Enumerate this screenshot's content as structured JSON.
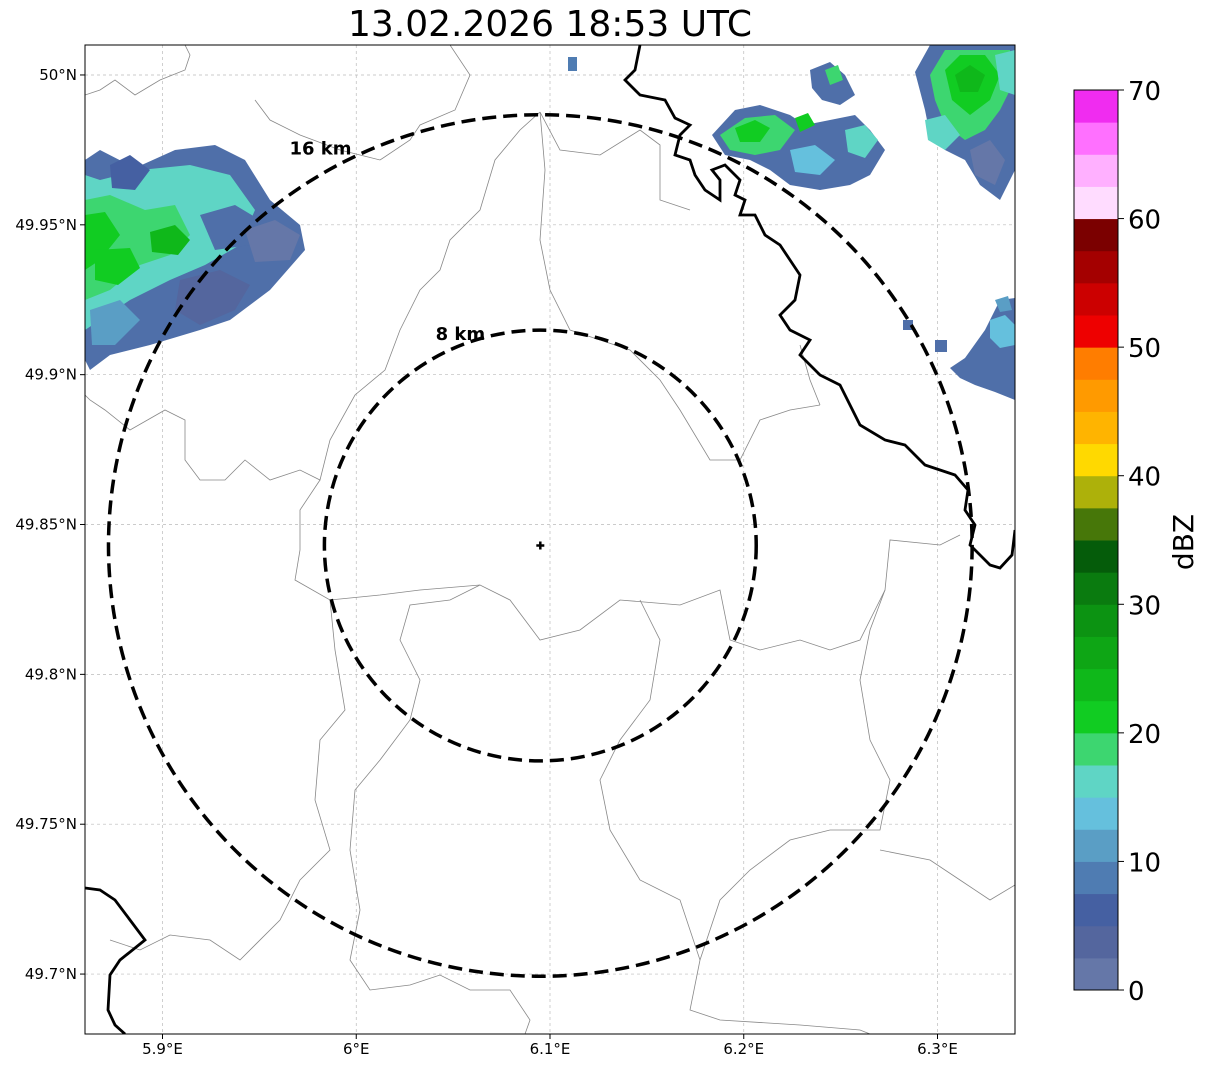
{
  "title": "13.02.2026 18:53 UTC",
  "map": {
    "lon_range": [
      5.86,
      6.34
    ],
    "lat_range": [
      49.68,
      50.01
    ],
    "lon_ticks": [
      {
        "value": 5.9,
        "label": "5.9°E"
      },
      {
        "value": 6.0,
        "label": "6°E"
      },
      {
        "value": 6.1,
        "label": "6.1°E"
      },
      {
        "value": 6.2,
        "label": "6.2°E"
      },
      {
        "value": 6.3,
        "label": "6.3°E"
      }
    ],
    "lat_ticks": [
      {
        "value": 50.0,
        "label": "50°N"
      },
      {
        "value": 49.95,
        "label": "49.95°N"
      },
      {
        "value": 49.9,
        "label": "49.9°N"
      },
      {
        "value": 49.85,
        "label": "49.85°N"
      },
      {
        "value": 49.8,
        "label": "49.8°N"
      },
      {
        "value": 49.75,
        "label": "49.75°N"
      },
      {
        "value": 49.7,
        "label": "49.7°N"
      }
    ],
    "center": {
      "lon": 6.095,
      "lat": 49.843
    },
    "rings": [
      {
        "radius_km": 8,
        "label": "8 km"
      },
      {
        "radius_km": 16,
        "label": "16 km"
      }
    ]
  },
  "colorbar": {
    "label": "dBZ",
    "min": 0,
    "max": 70,
    "ticks": [
      {
        "value": 0,
        "label": "0"
      },
      {
        "value": 10,
        "label": "10"
      },
      {
        "value": 20,
        "label": "20"
      },
      {
        "value": 30,
        "label": "30"
      },
      {
        "value": 40,
        "label": "40"
      },
      {
        "value": 50,
        "label": "50"
      },
      {
        "value": 60,
        "label": "60"
      },
      {
        "value": 70,
        "label": "70"
      }
    ],
    "colors": [
      "#6577a8",
      "#54669e",
      "#4560a2",
      "#4f7cb2",
      "#5a9ec5",
      "#65c0dd",
      "#5fd5c5",
      "#3dd670",
      "#11cc22",
      "#0fb81a",
      "#0ea615",
      "#0c9312",
      "#0a7b0f",
      "#055c0a",
      "#477709",
      "#adb10a",
      "#ffd900",
      "#ffb400",
      "#ff9a00",
      "#ff7d00",
      "#ee0000",
      "#cc0000",
      "#a40000",
      "#7b0000",
      "#ffdcff",
      "#ffb0ff",
      "#ff70ff",
      "#f02cf0"
    ]
  }
}
